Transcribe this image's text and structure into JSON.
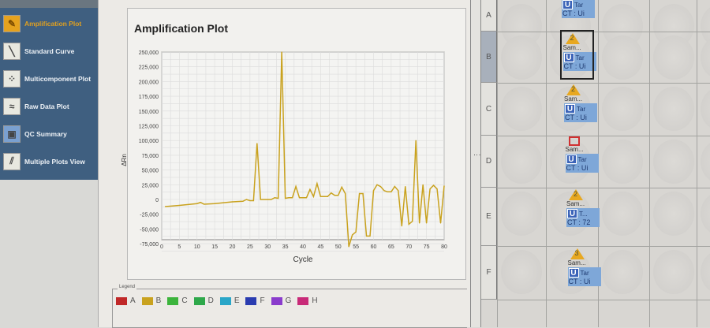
{
  "sidebar": {
    "items": [
      {
        "label": "Amplification Plot",
        "icon": "amplification-icon",
        "active": true
      },
      {
        "label": "Standard Curve",
        "icon": "standard-curve-icon"
      },
      {
        "label": "Multicomponent Plot",
        "icon": "multicomponent-icon"
      },
      {
        "label": "Raw Data Plot",
        "icon": "raw-data-icon"
      },
      {
        "label": "QC Summary",
        "icon": "qc-summary-icon"
      },
      {
        "label": "Multiple Plots View",
        "icon": "multiple-plots-icon"
      }
    ]
  },
  "legend": {
    "title": "Legend",
    "items": [
      {
        "label": "A",
        "color": "#c02828"
      },
      {
        "label": "B",
        "color": "#c9a21e"
      },
      {
        "label": "C",
        "color": "#3cb43c"
      },
      {
        "label": "D",
        "color": "#2ea84a"
      },
      {
        "label": "E",
        "color": "#2aa6c8"
      },
      {
        "label": "F",
        "color": "#2a3cb0"
      },
      {
        "label": "G",
        "color": "#8a3ccc"
      },
      {
        "label": "H",
        "color": "#c82a78"
      }
    ]
  },
  "chart_data": {
    "type": "line",
    "title": "Amplification Plot",
    "xlabel": "Cycle",
    "ylabel": "ΔRn",
    "xlim": [
      0,
      80
    ],
    "ylim": [
      -95000,
      260000
    ],
    "xticks": [
      0,
      5,
      10,
      15,
      20,
      25,
      30,
      35,
      40,
      45,
      50,
      55,
      60,
      65,
      70,
      75,
      80
    ],
    "yticks": [
      -75000,
      -50000,
      -25000,
      0,
      25000,
      50000,
      75000,
      100000,
      125000,
      150000,
      175000,
      200000,
      225000,
      250000
    ],
    "ytick_labels": [
      "-75,000",
      "-50,000",
      "-25,000",
      "0",
      "25,000",
      "50,000",
      "75,000",
      "100,000",
      "125,000",
      "150,000",
      "175,000",
      "200,000",
      "225,000",
      "250,000"
    ],
    "grid": true,
    "series": [
      {
        "name": "B",
        "color": "#c9a21e",
        "x": [
          1,
          5,
          10,
          11,
          12,
          15,
          20,
          23,
          24,
          25,
          26,
          27,
          28,
          30,
          31,
          32,
          33,
          34,
          35,
          36,
          37,
          38,
          39,
          40,
          41,
          42,
          43,
          44,
          45,
          47,
          48,
          49,
          50,
          51,
          52,
          53,
          54,
          55,
          56,
          57,
          58,
          59,
          60,
          61,
          62,
          63,
          64,
          65,
          66,
          67,
          68,
          69,
          70,
          71,
          72,
          73,
          74,
          75,
          76,
          77,
          78,
          79,
          80
        ],
        "y": [
          -12000,
          -10000,
          -7000,
          -5000,
          -8000,
          -7000,
          -4000,
          -3000,
          0,
          -2000,
          -2000,
          95000,
          0,
          0,
          0,
          3000,
          2000,
          250000,
          2000,
          3000,
          3000,
          22000,
          3000,
          3000,
          3000,
          17000,
          5000,
          27000,
          5000,
          5000,
          11000,
          7000,
          7000,
          21000,
          10000,
          -80000,
          -60000,
          -55000,
          10000,
          10000,
          -62000,
          -62000,
          15000,
          25000,
          22000,
          15000,
          13000,
          13000,
          22000,
          15000,
          -45000,
          22000,
          -42000,
          -37000,
          100000,
          -40000,
          25000,
          -40000,
          18000,
          24000,
          18000,
          -40000,
          23000
        ]
      }
    ]
  },
  "plate": {
    "rows": [
      "A",
      "B",
      "C",
      "D",
      "E",
      "F"
    ],
    "selected_row": "B",
    "wells": [
      {
        "row": "A",
        "badge": "",
        "flag": false,
        "sample": "",
        "task": "U",
        "target": "Tar",
        "ct": "CT : Ui"
      },
      {
        "row": "B",
        "badge": "2",
        "flag": false,
        "sample": "Sam...",
        "task": "U",
        "target": "Tar",
        "ct": "CT : Ui"
      },
      {
        "row": "C",
        "badge": "2",
        "flag": false,
        "sample": "Sam...",
        "task": "U",
        "target": "Tar",
        "ct": "CT : Ui"
      },
      {
        "row": "D",
        "badge": "",
        "flag": true,
        "sample": "Sam...",
        "task": "U",
        "target": "Tar",
        "ct": "CT : Ui"
      },
      {
        "row": "E",
        "badge": "2",
        "flag": false,
        "sample": "Sam...",
        "task": "U",
        "target": "T...",
        "ct": "CT : 72"
      },
      {
        "row": "F",
        "badge": "3",
        "flag": false,
        "sample": "Sam...",
        "task": "U",
        "target": "Tar",
        "ct": "CT : Ui"
      }
    ]
  }
}
